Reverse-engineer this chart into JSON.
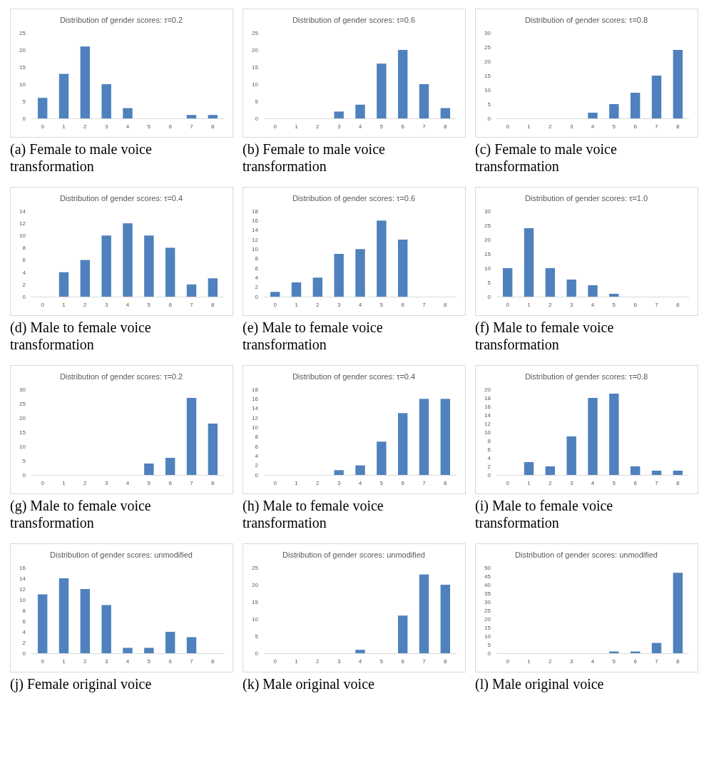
{
  "chart_data": [
    {
      "type": "bar",
      "title": "Distribution of gender scores: τ=0.2",
      "annotations": [
        "(a) Female to male voice transformation"
      ],
      "categories": [
        "0",
        "1",
        "2",
        "3",
        "4",
        "5",
        "6",
        "7",
        "8"
      ],
      "values": [
        6,
        13,
        21,
        10,
        3,
        0,
        0,
        1,
        1
      ],
      "color": "#4f81bd",
      "ylim": [
        0,
        25
      ],
      "yticks": [
        0,
        5,
        10,
        15,
        20,
        25
      ],
      "grid": false
    },
    {
      "type": "bar",
      "title": "Distribution of gender scores: τ=0.6",
      "annotations": [
        "(b) Female to male voice transformation"
      ],
      "categories": [
        "0",
        "1",
        "2",
        "3",
        "4",
        "5",
        "6",
        "7",
        "8"
      ],
      "values": [
        0,
        0,
        0,
        2,
        4,
        16,
        20,
        10,
        3
      ],
      "color": "#4f81bd",
      "ylim": [
        0,
        25
      ],
      "yticks": [
        0,
        5,
        10,
        15,
        20,
        25
      ],
      "grid": false
    },
    {
      "type": "bar",
      "title": "Distribution of gender scores: τ=0.8",
      "annotations": [
        "(c) Female to male voice transformation"
      ],
      "categories": [
        "0",
        "1",
        "2",
        "3",
        "4",
        "5",
        "6",
        "7",
        "8"
      ],
      "values": [
        0,
        0,
        0,
        0,
        2,
        5,
        9,
        15,
        24
      ],
      "color": "#4f81bd",
      "ylim": [
        0,
        30
      ],
      "yticks": [
        0,
        5,
        10,
        15,
        20,
        25,
        30
      ],
      "grid": false
    },
    {
      "type": "bar",
      "title": "Distribution of gender scores: τ=0.4",
      "annotations": [
        "(d) Male to female voice transformation"
      ],
      "categories": [
        "0",
        "1",
        "2",
        "3",
        "4",
        "5",
        "6",
        "7",
        "8"
      ],
      "values": [
        0,
        4,
        6,
        10,
        12,
        10,
        8,
        2,
        3
      ],
      "color": "#4f81bd",
      "ylim": [
        0,
        14
      ],
      "yticks": [
        0,
        2,
        4,
        6,
        8,
        10,
        12,
        14
      ],
      "grid": false
    },
    {
      "type": "bar",
      "title": "Distribution of gender scores: τ=0.6",
      "annotations": [
        "(e) Male to female voice transformation"
      ],
      "categories": [
        "0",
        "1",
        "2",
        "3",
        "4",
        "5",
        "6",
        "7",
        "8"
      ],
      "values": [
        1,
        3,
        4,
        9,
        10,
        16,
        12,
        0,
        0
      ],
      "color": "#4f81bd",
      "ylim": [
        0,
        18
      ],
      "yticks": [
        0,
        2,
        4,
        6,
        8,
        10,
        12,
        14,
        16,
        18
      ],
      "grid": false
    },
    {
      "type": "bar",
      "title": "Distribution of gender scores: τ=1.0",
      "annotations": [
        "(f) Male to female voice transformation"
      ],
      "categories": [
        "0",
        "1",
        "2",
        "3",
        "4",
        "5",
        "6",
        "7",
        "8"
      ],
      "values": [
        10,
        24,
        10,
        6,
        4,
        1,
        0,
        0,
        0
      ],
      "color": "#4f81bd",
      "ylim": [
        0,
        30
      ],
      "yticks": [
        0,
        5,
        10,
        15,
        20,
        25,
        30
      ],
      "grid": false
    },
    {
      "type": "bar",
      "title": "Distribution of gender scores: τ=0.2",
      "annotations": [
        "(g) Male to female voice transformation"
      ],
      "categories": [
        "0",
        "1",
        "2",
        "3",
        "4",
        "5",
        "6",
        "7",
        "8"
      ],
      "values": [
        0,
        0,
        0,
        0,
        0,
        4,
        6,
        27,
        18
      ],
      "color": "#4f81bd",
      "ylim": [
        0,
        30
      ],
      "yticks": [
        0,
        5,
        10,
        15,
        20,
        25,
        30
      ],
      "grid": false
    },
    {
      "type": "bar",
      "title": "Distribution of gender scores: τ=0.4",
      "annotations": [
        "(h) Male to female voice transformation"
      ],
      "categories": [
        "0",
        "1",
        "2",
        "3",
        "4",
        "5",
        "6",
        "7",
        "8"
      ],
      "values": [
        0,
        0,
        0,
        1,
        2,
        7,
        13,
        16,
        16
      ],
      "color": "#4f81bd",
      "ylim": [
        0,
        18
      ],
      "yticks": [
        0,
        2,
        4,
        6,
        8,
        10,
        12,
        14,
        16,
        18
      ],
      "grid": false
    },
    {
      "type": "bar",
      "title": "Distribution of gender scores: τ=0.8",
      "annotations": [
        "(i) Male to female voice transformation"
      ],
      "categories": [
        "0",
        "1",
        "2",
        "3",
        "4",
        "5",
        "6",
        "7",
        "8"
      ],
      "values": [
        0,
        3,
        2,
        9,
        18,
        19,
        2,
        1,
        1
      ],
      "color": "#4f81bd",
      "ylim": [
        0,
        20
      ],
      "yticks": [
        0,
        2,
        4,
        6,
        8,
        10,
        12,
        14,
        16,
        18,
        20
      ],
      "grid": false
    },
    {
      "type": "bar",
      "title": "Distribution of gender scores: unmodified",
      "annotations": [
        "(j) Female original voice"
      ],
      "categories": [
        "0",
        "1",
        "2",
        "3",
        "4",
        "5",
        "6",
        "7",
        "8"
      ],
      "values": [
        11,
        14,
        12,
        9,
        1,
        1,
        4,
        3,
        0
      ],
      "color": "#4f81bd",
      "ylim": [
        0,
        16
      ],
      "yticks": [
        0,
        2,
        4,
        6,
        8,
        10,
        12,
        14,
        16
      ],
      "grid": false
    },
    {
      "type": "bar",
      "title": "Distribution of gender scores: unmodified",
      "annotations": [
        "(k) Male original voice"
      ],
      "categories": [
        "0",
        "1",
        "2",
        "3",
        "4",
        "5",
        "6",
        "7",
        "8"
      ],
      "values": [
        0,
        0,
        0,
        0,
        1,
        0,
        11,
        23,
        20
      ],
      "color": "#4f81bd",
      "ylim": [
        0,
        25
      ],
      "yticks": [
        0,
        5,
        10,
        15,
        20,
        25
      ],
      "grid": false
    },
    {
      "type": "bar",
      "title": "Distribution of gender scores: unmodified",
      "annotations": [
        "(l) Male original voice"
      ],
      "categories": [
        "0",
        "1",
        "2",
        "3",
        "4",
        "5",
        "6",
        "7",
        "8"
      ],
      "values": [
        0,
        0,
        0,
        0,
        0,
        1,
        1,
        6,
        47
      ],
      "color": "#4f81bd",
      "ylim": [
        0,
        50
      ],
      "yticks": [
        0,
        5,
        10,
        15,
        20,
        25,
        30,
        35,
        40,
        45,
        50
      ],
      "grid": false
    }
  ]
}
